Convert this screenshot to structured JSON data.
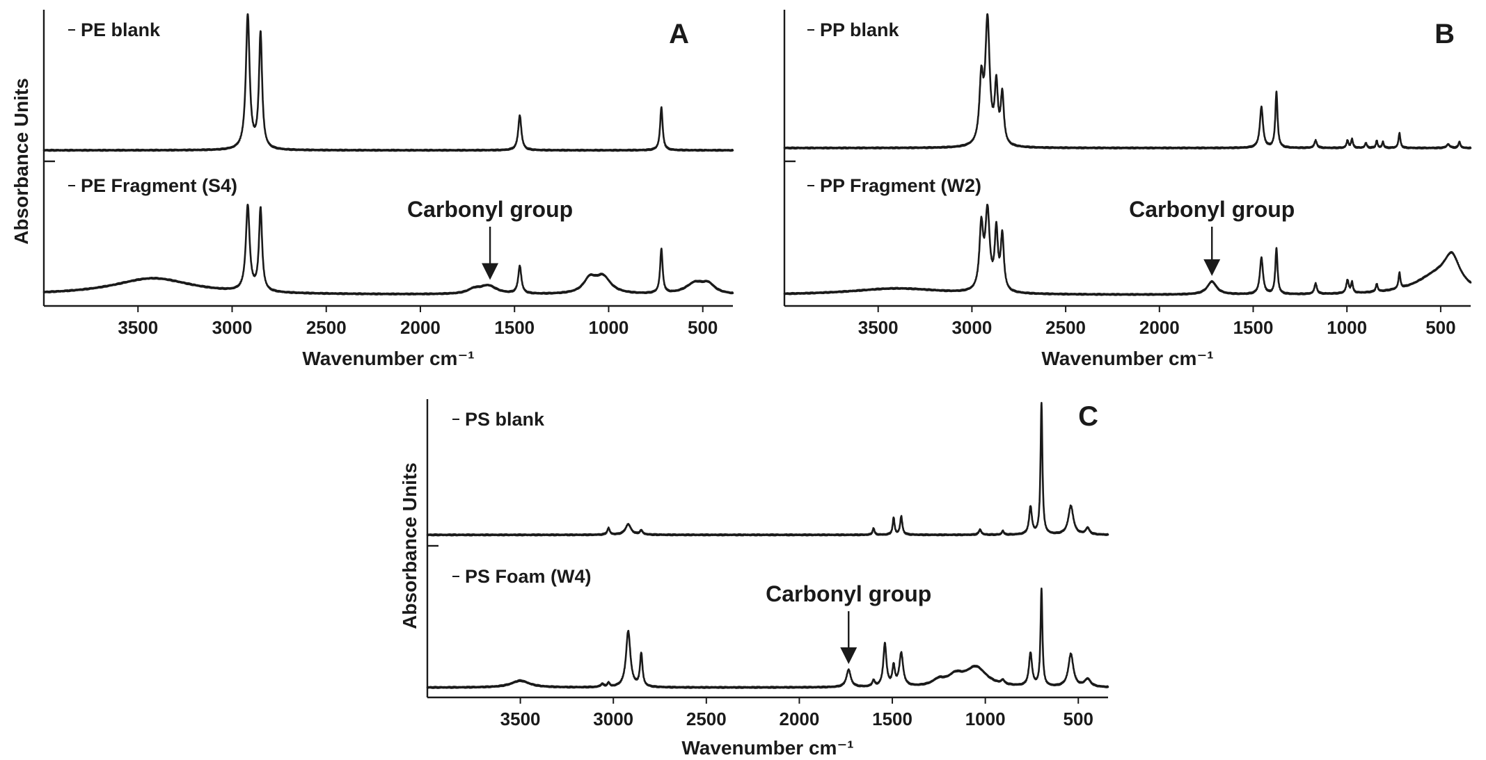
{
  "chart_data": [
    {
      "panel": "A",
      "type": "line",
      "xlabel": "Wavenumber cm⁻¹",
      "ylabel": "Absorbance Units",
      "xlim": [
        4000,
        340
      ],
      "x_reversed": true,
      "xticks": [
        3500,
        3000,
        2500,
        2000,
        1500,
        1000,
        500
      ],
      "grid": false,
      "series": [
        {
          "name": "PE blank",
          "baseline": 0.02,
          "peaks": [
            [
              2917,
              1.0,
              12
            ],
            [
              2849,
              0.86,
              10
            ],
            [
              1472,
              0.26,
              10
            ],
            [
              720,
              0.32,
              8
            ]
          ]
        },
        {
          "name": "PE Fragment (S4)",
          "baseline": 0.03,
          "peaks": [
            [
              3420,
              0.12,
              260
            ],
            [
              2917,
              0.62,
              12
            ],
            [
              2849,
              0.6,
              10
            ],
            [
              1715,
              0.03,
              40
            ],
            [
              1640,
              0.06,
              55
            ],
            [
              1472,
              0.2,
              10
            ],
            [
              1100,
              0.1,
              40
            ],
            [
              1030,
              0.12,
              50
            ],
            [
              720,
              0.32,
              8
            ],
            [
              540,
              0.08,
              60
            ],
            [
              470,
              0.06,
              40
            ]
          ]
        }
      ],
      "annotation": {
        "text": "Carbonyl group",
        "x": 1630
      }
    },
    {
      "panel": "B",
      "type": "line",
      "xlabel": "Wavenumber cm⁻¹",
      "ylabel": "",
      "xlim": [
        4000,
        340
      ],
      "x_reversed": true,
      "xticks": [
        3500,
        3000,
        2500,
        2000,
        1500,
        1000,
        500
      ],
      "grid": false,
      "series": [
        {
          "name": "PP blank",
          "baseline": 0.04,
          "peaks": [
            [
              2950,
              0.5,
              12
            ],
            [
              2917,
              1.0,
              14
            ],
            [
              2870,
              0.46,
              10
            ],
            [
              2838,
              0.4,
              10
            ],
            [
              1456,
              0.33,
              10
            ],
            [
              1376,
              0.45,
              7
            ],
            [
              1167,
              0.06,
              8
            ],
            [
              997,
              0.06,
              6
            ],
            [
              973,
              0.07,
              6
            ],
            [
              899,
              0.04,
              6
            ],
            [
              841,
              0.06,
              5
            ],
            [
              808,
              0.05,
              5
            ],
            [
              720,
              0.12,
              6
            ],
            [
              460,
              0.03,
              10
            ],
            [
              400,
              0.05,
              6
            ]
          ]
        },
        {
          "name": "PP Fragment (W2)",
          "baseline": 0.03,
          "peaks": [
            [
              3400,
              0.05,
              300
            ],
            [
              2950,
              0.48,
              12
            ],
            [
              2917,
              0.6,
              14
            ],
            [
              2870,
              0.45,
              10
            ],
            [
              2838,
              0.42,
              10
            ],
            [
              1720,
              0.1,
              30
            ],
            [
              1456,
              0.28,
              10
            ],
            [
              1376,
              0.35,
              7
            ],
            [
              1167,
              0.08,
              8
            ],
            [
              997,
              0.1,
              8
            ],
            [
              973,
              0.08,
              6
            ],
            [
              841,
              0.06,
              6
            ],
            [
              720,
              0.12,
              6
            ],
            [
              520,
              0.14,
              140
            ],
            [
              440,
              0.22,
              50
            ]
          ]
        }
      ],
      "annotation": {
        "text": "Carbonyl group",
        "x": 1720
      }
    },
    {
      "panel": "C",
      "type": "line",
      "xlabel": "Wavenumber cm⁻¹",
      "ylabel": "Absorbance Units",
      "xlim": [
        4000,
        340
      ],
      "x_reversed": true,
      "xticks": [
        3500,
        3000,
        2500,
        2000,
        1500,
        1000,
        500
      ],
      "grid": false,
      "series": [
        {
          "name": "PS blank",
          "baseline": 0.02,
          "peaks": [
            [
              3026,
              0.05,
              8
            ],
            [
              2920,
              0.08,
              18
            ],
            [
              2850,
              0.03,
              10
            ],
            [
              1601,
              0.05,
              6
            ],
            [
              1493,
              0.13,
              6
            ],
            [
              1452,
              0.14,
              7
            ],
            [
              1028,
              0.04,
              8
            ],
            [
              906,
              0.03,
              6
            ],
            [
              757,
              0.21,
              9
            ],
            [
              698,
              1.0,
              6
            ],
            [
              540,
              0.22,
              16
            ],
            [
              450,
              0.05,
              12
            ]
          ]
        },
        {
          "name": "PS Foam (W4)",
          "baseline": 0.03,
          "peaks": [
            [
              3500,
              0.07,
              60
            ],
            [
              3060,
              0.03,
              10
            ],
            [
              3026,
              0.04,
              8
            ],
            [
              2920,
              0.58,
              14
            ],
            [
              2850,
              0.34,
              8
            ],
            [
              1735,
              0.18,
              14
            ],
            [
              1601,
              0.06,
              8
            ],
            [
              1540,
              0.44,
              10
            ],
            [
              1493,
              0.2,
              8
            ],
            [
              1452,
              0.34,
              12
            ],
            [
              1250,
              0.06,
              40
            ],
            [
              1160,
              0.1,
              50
            ],
            [
              1050,
              0.2,
              70
            ],
            [
              906,
              0.04,
              10
            ],
            [
              757,
              0.34,
              10
            ],
            [
              698,
              1.0,
              6
            ],
            [
              540,
              0.34,
              16
            ],
            [
              450,
              0.08,
              20
            ]
          ]
        }
      ],
      "annotation": {
        "text": "Carbonyl group",
        "x": 1735
      }
    }
  ]
}
